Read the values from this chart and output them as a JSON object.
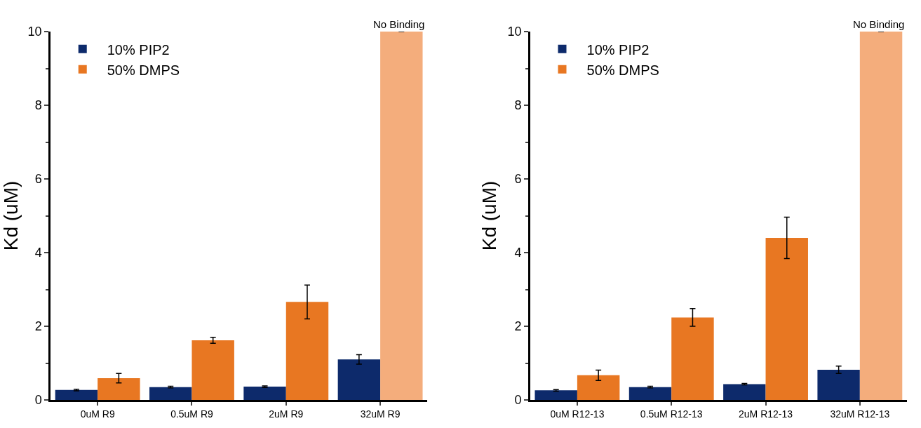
{
  "chart_data": [
    {
      "type": "bar",
      "ylabel": "Kd (uM)",
      "categories": [
        "0uM R9",
        "0.5uM R9",
        "2uM R9",
        "32uM R9"
      ],
      "ylim": [
        0,
        10
      ],
      "yticks": [
        0,
        2,
        4,
        6,
        8,
        10
      ],
      "legend": "top left",
      "series": [
        {
          "name": "10% PIP2",
          "color": "#0d2a6b",
          "values": [
            0.27,
            0.35,
            0.36,
            1.1
          ],
          "errors": [
            0.02,
            0.02,
            0.02,
            0.13
          ]
        },
        {
          "name": "50% DMPS",
          "color": "#e87722",
          "colors": [
            "#e87722",
            "#e87722",
            "#e87722",
            "#f4ad7c"
          ],
          "values": [
            0.59,
            1.62,
            2.66,
            10
          ],
          "errors": [
            0.13,
            0.08,
            0.46,
            null
          ]
        }
      ],
      "annotations": [
        {
          "text": "No Binding",
          "x": "32uM R9",
          "y": 10
        }
      ]
    },
    {
      "type": "bar",
      "ylabel": "Kd (uM)",
      "categories": [
        "0uM R12-13",
        "0.5uM R12-13",
        "2uM R12-13",
        "32uM R12-13"
      ],
      "ylim": [
        0,
        10
      ],
      "yticks": [
        0,
        2,
        4,
        6,
        8,
        10
      ],
      "legend": "top left",
      "series": [
        {
          "name": "10% PIP2",
          "color": "#0d2a6b",
          "values": [
            0.26,
            0.35,
            0.43,
            0.82
          ],
          "errors": [
            0.02,
            0.02,
            0.02,
            0.1
          ]
        },
        {
          "name": "50% DMPS",
          "color": "#e87722",
          "colors": [
            "#e87722",
            "#e87722",
            "#e87722",
            "#f4ad7c"
          ],
          "values": [
            0.67,
            2.24,
            4.4,
            10
          ],
          "errors": [
            0.14,
            0.24,
            0.56,
            null
          ]
        }
      ],
      "annotations": [
        {
          "text": "No Binding",
          "x": "32uM R12-13",
          "y": 10
        }
      ]
    }
  ]
}
